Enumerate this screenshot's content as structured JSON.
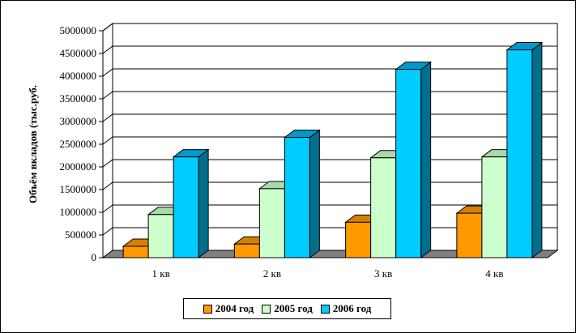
{
  "chart_data": {
    "type": "bar",
    "title": "",
    "xlabel": "",
    "ylabel": "Объём вкладов (тыс.руб.",
    "categories": [
      "1 кв",
      "2 кв",
      "3 кв",
      "4 кв"
    ],
    "series": [
      {
        "name": "2004 год",
        "values": [
          250000,
          300000,
          780000,
          980000
        ],
        "color": "#ff9900",
        "side": "#b86e00",
        "top": "#d68000"
      },
      {
        "name": "2005 год",
        "values": [
          950000,
          1520000,
          2200000,
          2220000
        ],
        "color": "#ccffcc",
        "side": "#7fb38a",
        "top": "#a9d9a9"
      },
      {
        "name": "2006 год",
        "values": [
          2220000,
          2650000,
          4150000,
          4580000
        ],
        "color": "#00ccff",
        "side": "#006f8e",
        "top": "#0099cc"
      }
    ],
    "ylim": [
      0,
      5000000
    ],
    "yticks": [
      0,
      500000,
      1000000,
      1500000,
      2000000,
      2500000,
      3000000,
      3500000,
      4000000,
      4500000,
      5000000
    ],
    "grid": true,
    "legend_position": "bottom"
  }
}
